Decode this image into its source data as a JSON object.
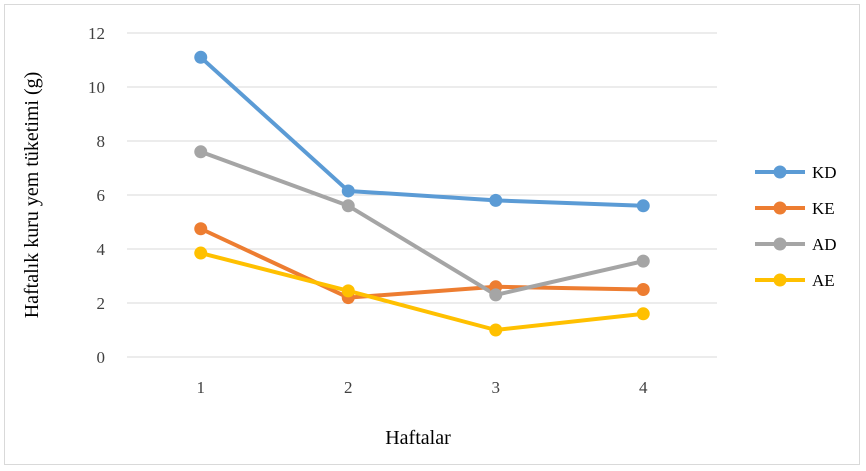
{
  "chart_data": {
    "type": "line",
    "x": [
      1,
      2,
      3,
      4
    ],
    "xlabel": "Haftalar",
    "ylabel": "Haftalık kuru yem tüketimi (g)",
    "ylim": [
      0,
      12
    ],
    "yticks": [
      0,
      2,
      4,
      6,
      8,
      10,
      12
    ],
    "grid": true,
    "legend_position": "right",
    "series": [
      {
        "name": "KD",
        "color": "#5b9bd5",
        "values": [
          11.1,
          6.15,
          5.8,
          5.6
        ]
      },
      {
        "name": "KE",
        "color": "#ed7d31",
        "values": [
          4.75,
          2.2,
          2.6,
          2.5
        ]
      },
      {
        "name": "AD",
        "color": "#a5a5a5",
        "values": [
          7.6,
          5.6,
          2.3,
          3.55
        ]
      },
      {
        "name": "AE",
        "color": "#ffc000",
        "values": [
          3.85,
          2.45,
          1.0,
          1.6
        ]
      }
    ]
  }
}
